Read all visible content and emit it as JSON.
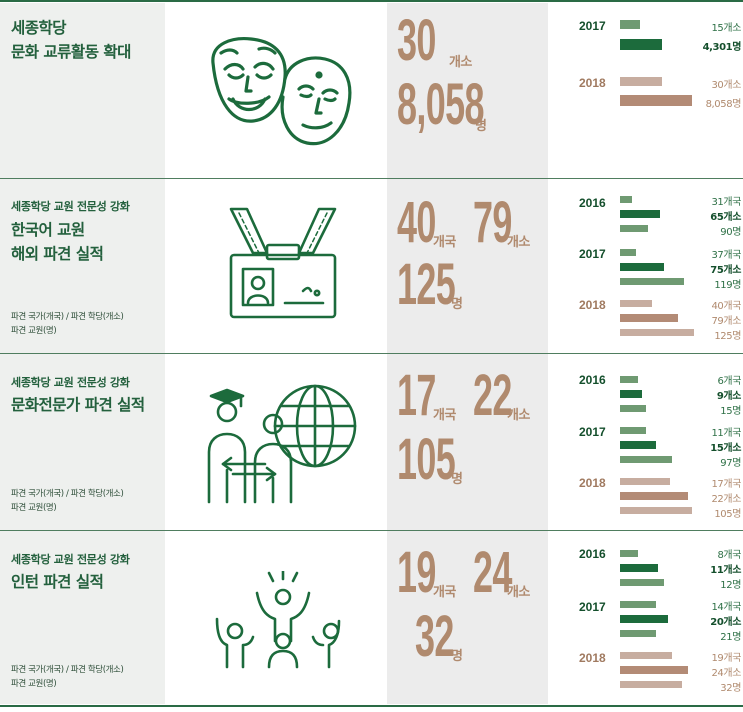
{
  "rows": [
    {
      "subtitle": "",
      "title": [
        "세종학당",
        "문화 교류활동 확대"
      ],
      "notes": [],
      "icon": "theater-masks-icon",
      "numbers": [
        {
          "value": "30",
          "unit": "개소"
        },
        {
          "value": "8,058",
          "unit": "명"
        }
      ],
      "chart": {
        "groups": [
          {
            "year": "2017",
            "bars": [
              {
                "value": 15,
                "label": "15개소"
              },
              {
                "value": 4301,
                "label": "4,301명"
              }
            ]
          },
          {
            "year": "2018",
            "bars": [
              {
                "value": 30,
                "label": "30개소"
              },
              {
                "value": 8058,
                "label": "8,058명"
              }
            ]
          }
        ]
      }
    },
    {
      "subtitle": "세종학당 교원 전문성 강화",
      "title": [
        "한국어 교원",
        "해외 파견 실적"
      ],
      "notes": [
        "파견 국가(개국) / 파견 학당(개소)",
        "파견 교원(명)"
      ],
      "icon": "id-badge-icon",
      "numbers": [
        {
          "value": "40",
          "unit": "개국"
        },
        {
          "value": "79",
          "unit": "개소"
        },
        {
          "value": "125",
          "unit": "명"
        }
      ],
      "chart": {
        "groups": [
          {
            "year": "2016",
            "bars": [
              {
                "value": 31,
                "label": "31개국"
              },
              {
                "value": 65,
                "label": "65개소"
              },
              {
                "value": 90,
                "label": "90명"
              }
            ]
          },
          {
            "year": "2017",
            "bars": [
              {
                "value": 37,
                "label": "37개국"
              },
              {
                "value": 75,
                "label": "75개소"
              },
              {
                "value": 119,
                "label": "119명"
              }
            ]
          },
          {
            "year": "2018",
            "bars": [
              {
                "value": 40,
                "label": "40개국"
              },
              {
                "value": 79,
                "label": "79개소"
              },
              {
                "value": 125,
                "label": "125명"
              }
            ]
          }
        ]
      }
    },
    {
      "subtitle": "세종학당 교원 전문성 강화",
      "title": [
        "문화전문가 파견 실적"
      ],
      "notes": [
        "파견 국가(개국) / 파견 학당(개소)",
        "파견 교원(명)"
      ],
      "icon": "global-exchange-icon",
      "numbers": [
        {
          "value": "17",
          "unit": "개국"
        },
        {
          "value": "22",
          "unit": "개소"
        },
        {
          "value": "105",
          "unit": "명"
        }
      ],
      "chart": {
        "groups": [
          {
            "year": "2016",
            "bars": [
              {
                "value": 6,
                "label": "6개국"
              },
              {
                "value": 9,
                "label": "9개소"
              },
              {
                "value": 15,
                "label": "15명"
              }
            ]
          },
          {
            "year": "2017",
            "bars": [
              {
                "value": 11,
                "label": "11개국"
              },
              {
                "value": 15,
                "label": "15개소"
              },
              {
                "value": 97,
                "label": "97명"
              }
            ]
          },
          {
            "year": "2018",
            "bars": [
              {
                "value": 17,
                "label": "17개국"
              },
              {
                "value": 22,
                "label": "22개소"
              },
              {
                "value": 105,
                "label": "105명"
              }
            ]
          }
        ]
      }
    },
    {
      "subtitle": "세종학당 교원 전문성 강화",
      "title": [
        "인턴 파견 실적"
      ],
      "notes": [
        "파견 국가(개국) / 파견 학당(개소)",
        "파견 교원(명)"
      ],
      "icon": "cheering-people-icon",
      "numbers": [
        {
          "value": "19",
          "unit": "개국"
        },
        {
          "value": "24",
          "unit": "개소"
        },
        {
          "value": "32",
          "unit": "명"
        }
      ],
      "chart": {
        "groups": [
          {
            "year": "2016",
            "bars": [
              {
                "value": 8,
                "label": "8개국"
              },
              {
                "value": 11,
                "label": "11개소"
              },
              {
                "value": 12,
                "label": "12명"
              }
            ]
          },
          {
            "year": "2017",
            "bars": [
              {
                "value": 14,
                "label": "14개국"
              },
              {
                "value": 20,
                "label": "20개소"
              },
              {
                "value": 21,
                "label": "21명"
              }
            ]
          },
          {
            "year": "2018",
            "bars": [
              {
                "value": 19,
                "label": "19개국"
              },
              {
                "value": 24,
                "label": "24개소"
              },
              {
                "value": 32,
                "label": "32명"
              }
            ]
          }
        ]
      }
    }
  ],
  "colors": {
    "green_light": "#6f9a72",
    "green_dark": "#1c6b3c",
    "brown_light": "#c7ada0",
    "brown": "#b38b76",
    "number": "#b08a6e"
  }
}
